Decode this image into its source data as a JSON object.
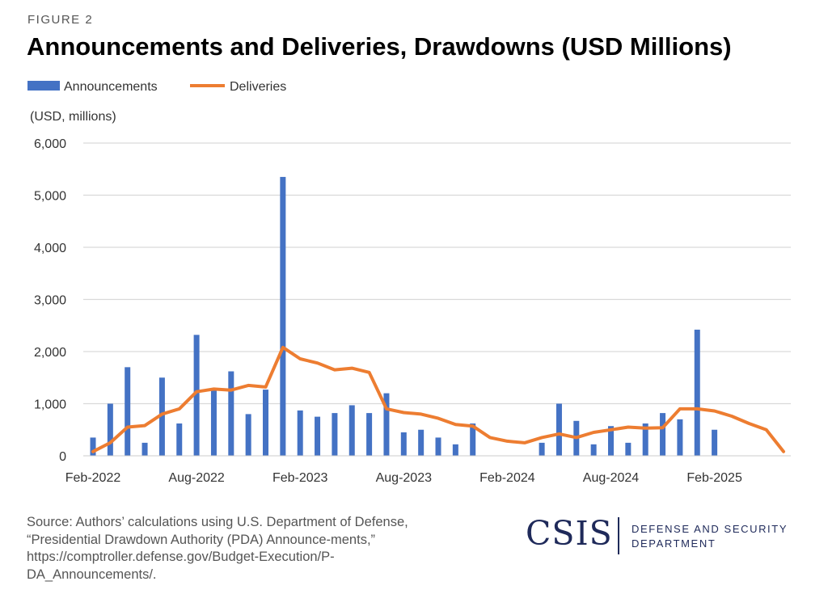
{
  "figure_label": "FIGURE 2",
  "chart_data": {
    "type": "bar+line",
    "title": "Announcements and Deliveries, Drawdowns (USD Millions)",
    "ylabel": "(USD, millions)",
    "ylim": [
      0,
      6000
    ],
    "yticks": [
      0,
      1000,
      2000,
      3000,
      4000,
      5000,
      6000
    ],
    "ytick_labels": [
      "0",
      "1,000",
      "2,000",
      "3,000",
      "4,000",
      "5,000",
      "6,000"
    ],
    "xtick_labels": [
      {
        "index": 0,
        "label": "Feb-2022"
      },
      {
        "index": 6,
        "label": "Aug-2022"
      },
      {
        "index": 12,
        "label": "Feb-2023"
      },
      {
        "index": 18,
        "label": "Aug-2023"
      },
      {
        "index": 24,
        "label": "Feb-2024"
      },
      {
        "index": 30,
        "label": "Aug-2024"
      },
      {
        "index": 36,
        "label": "Feb-2025"
      }
    ],
    "legend": [
      "Announcements",
      "Deliveries"
    ],
    "legend_position": "top-left",
    "grid": true,
    "series": [
      {
        "name": "Announcements",
        "type": "bar",
        "color": "#4472c4",
        "values": [
          350,
          1000,
          1700,
          250,
          1500,
          620,
          2320,
          1250,
          1620,
          800,
          1270,
          5350,
          870,
          750,
          820,
          970,
          820,
          1200,
          450,
          500,
          350,
          220,
          620,
          0,
          0,
          0,
          250,
          1000,
          670,
          220,
          570,
          250,
          620,
          820,
          700,
          2420,
          500,
          0,
          0,
          0,
          0,
          0,
          0
        ]
      },
      {
        "name": "Deliveries",
        "type": "line",
        "color": "#ed7d31",
        "values": [
          80,
          250,
          550,
          580,
          800,
          900,
          1230,
          1280,
          1260,
          1350,
          1320,
          2080,
          1860,
          1780,
          1650,
          1680,
          1600,
          900,
          830,
          800,
          720,
          600,
          570,
          350,
          280,
          250,
          350,
          420,
          350,
          450,
          500,
          550,
          530,
          540,
          900,
          900,
          860,
          760,
          620,
          500,
          80
        ]
      }
    ]
  },
  "source_text": "Source: Authors’ calculations using U.S. Department of Defense, “Presidential Drawdown Authority (PDA) Announce-ments,” https://comptroller.defense.gov/Budget-Execution/P-DA_Announcements/.",
  "logo": {
    "wordmark": "CSIS",
    "dept_line1": "DEFENSE AND SECURITY",
    "dept_line2": "DEPARTMENT"
  }
}
